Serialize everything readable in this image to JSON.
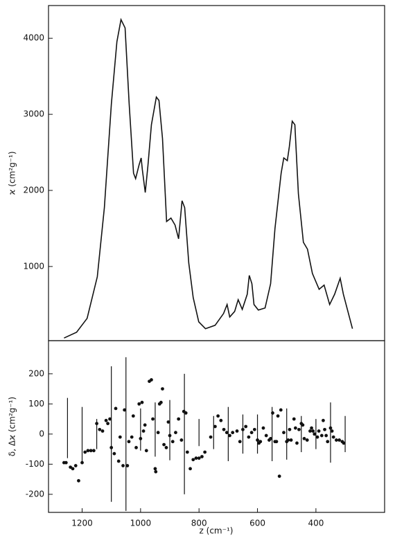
{
  "chart_data": [
    {
      "type": "line",
      "ylabel": "ϰ (cm²g⁻¹)",
      "color": "#111111",
      "x": [
        1262,
        1219,
        1183,
        1148,
        1124,
        1100,
        1081,
        1067,
        1053,
        1039,
        1024,
        1017,
        1005,
        998,
        994,
        984,
        975,
        963,
        946,
        937,
        925,
        911,
        896,
        882,
        870,
        858,
        849,
        835,
        820,
        801,
        778,
        745,
        716,
        704,
        695,
        678,
        666,
        652,
        635,
        628,
        619,
        612,
        597,
        574,
        555,
        540,
        519,
        510,
        498,
        491,
        481,
        472,
        460,
        443,
        429,
        412,
        389,
        372,
        353,
        336,
        317,
        306,
        275
      ],
      "values": [
        60,
        136,
        318,
        864,
        1773,
        3136,
        3955,
        4245,
        4136,
        3136,
        2227,
        2155,
        2336,
        2427,
        2273,
        1973,
        2318,
        2864,
        3227,
        3182,
        2682,
        1591,
        1636,
        1545,
        1364,
        1864,
        1773,
        1045,
        591,
        273,
        182,
        227,
        382,
        500,
        336,
        409,
        564,
        436,
        636,
        882,
        773,
        500,
        427,
        455,
        773,
        1500,
        2227,
        2427,
        2391,
        2573,
        2909,
        2864,
        1955,
        1318,
        1227,
        909,
        700,
        755,
        500,
        636,
        845,
        636,
        182
      ],
      "xlim": [
        1315,
        165
      ],
      "ylim": [
        25,
        4430
      ],
      "yticks": [
        1000,
        2000,
        3000,
        4000
      ]
    },
    {
      "type": "scatter",
      "ylabel": "δ, Δϰ (cm²g⁻¹)",
      "xlabel": "z (cm⁻¹)",
      "color": "#111111",
      "x": [
        1262,
        1255,
        1240,
        1232,
        1222,
        1212,
        1200,
        1190,
        1180,
        1170,
        1160,
        1150,
        1140,
        1130,
        1118,
        1112,
        1105,
        1100,
        1090,
        1085,
        1075,
        1070,
        1060,
        1055,
        1045,
        1040,
        1030,
        1025,
        1015,
        1005,
        1000,
        995,
        990,
        985,
        980,
        970,
        963,
        958,
        950,
        948,
        940,
        935,
        930,
        925,
        920,
        912,
        905,
        900,
        890,
        880,
        870,
        860,
        852,
        845,
        840,
        830,
        820,
        810,
        800,
        790,
        780,
        760,
        745,
        735,
        725,
        715,
        705,
        695,
        685,
        670,
        660,
        650,
        640,
        630,
        620,
        610,
        600,
        595,
        590,
        580,
        570,
        560,
        555,
        548,
        540,
        535,
        530,
        525,
        520,
        510,
        500,
        495,
        490,
        485,
        475,
        470,
        465,
        458,
        450,
        445,
        440,
        430,
        420,
        415,
        410,
        405,
        395,
        390,
        380,
        375,
        370,
        365,
        360,
        350,
        345,
        340,
        330,
        320,
        310,
        305
      ],
      "values": [
        -95,
        -95,
        -110,
        -115,
        -105,
        -155,
        -95,
        -60,
        -55,
        -55,
        -55,
        35,
        15,
        10,
        45,
        35,
        50,
        -45,
        -65,
        85,
        -90,
        -10,
        -105,
        80,
        -105,
        -25,
        -10,
        60,
        -45,
        100,
        -15,
        105,
        10,
        30,
        -55,
        175,
        180,
        50,
        -115,
        -125,
        5,
        100,
        105,
        150,
        -35,
        -45,
        40,
        -5,
        -25,
        5,
        50,
        -20,
        75,
        70,
        -60,
        -115,
        -85,
        -80,
        -80,
        -75,
        -60,
        -10,
        25,
        60,
        45,
        15,
        5,
        -5,
        5,
        10,
        -25,
        15,
        25,
        -10,
        5,
        15,
        -20,
        -30,
        -25,
        20,
        -5,
        -20,
        -15,
        70,
        -25,
        -25,
        60,
        -140,
        80,
        5,
        -25,
        -20,
        15,
        -20,
        50,
        20,
        -30,
        15,
        35,
        30,
        -15,
        -20,
        10,
        20,
        10,
        0,
        -10,
        10,
        -5,
        45,
        15,
        -5,
        -25,
        20,
        10,
        -10,
        -20,
        -20,
        -25,
        -30
      ],
      "errorbars": {
        "x": [
          1250,
          1200,
          1150,
          1100,
          1050,
          1000,
          950,
          900,
          850,
          800,
          750,
          700,
          650,
          600,
          550,
          500,
          450,
          400,
          350,
          300
        ],
        "values": [
          20,
          0,
          0,
          0,
          0,
          15,
          15,
          13,
          0,
          5,
          5,
          0,
          0,
          0,
          0,
          0,
          0,
          0,
          5,
          0
        ],
        "errors": [
          100,
          90,
          50,
          225,
          255,
          70,
          90,
          100,
          200,
          45,
          55,
          90,
          65,
          65,
          90,
          85,
          60,
          50,
          100,
          60
        ]
      },
      "xlim": [
        1315,
        165
      ],
      "ylim": [
        -260,
        310
      ],
      "yticks": [
        -200,
        -100,
        0,
        100,
        200
      ],
      "xticks": [
        1200,
        1000,
        800,
        600,
        400
      ]
    }
  ]
}
